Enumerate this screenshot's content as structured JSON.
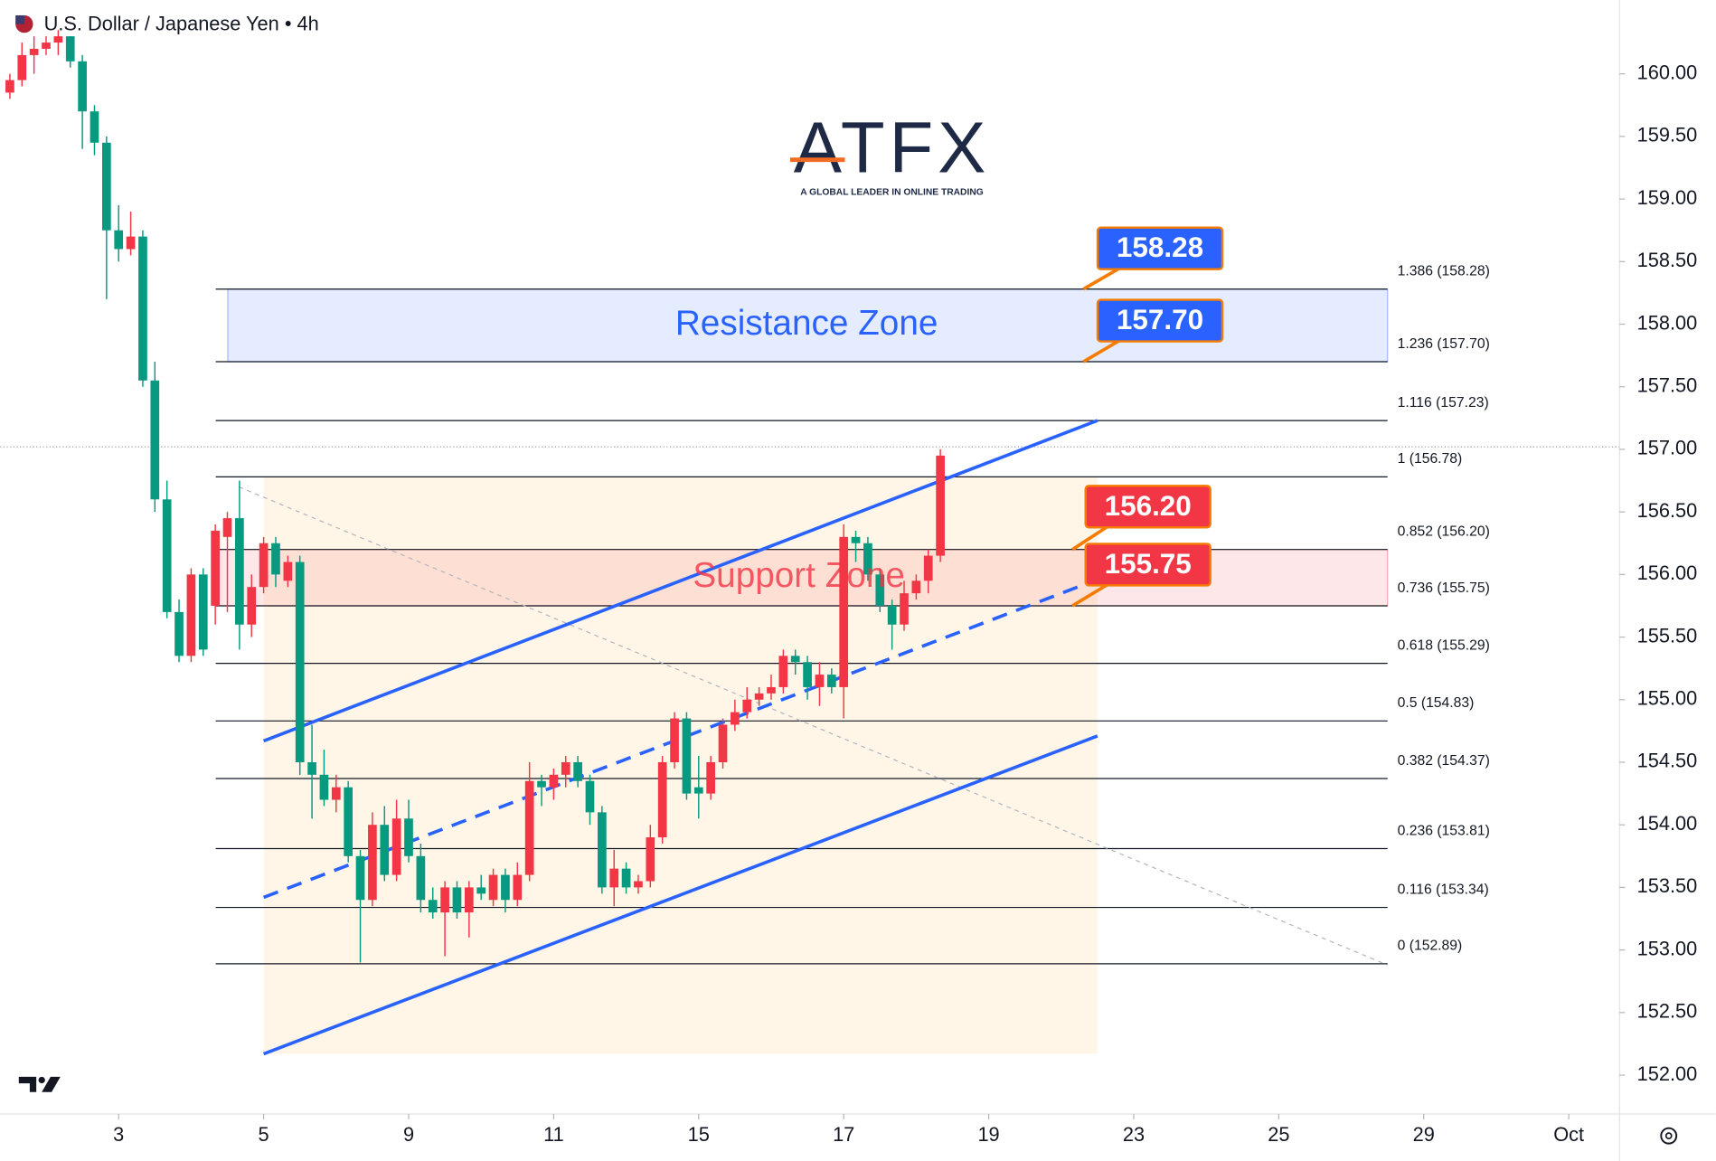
{
  "header": {
    "title": "U.S. Dollar / Japanese Yen • 4h"
  },
  "logo": {
    "name": "ATFX",
    "tagline": "A GLOBAL LEADER IN ONLINE TRADING"
  },
  "chart_data": {
    "type": "candlestick",
    "x": [
      -9,
      -8,
      -7,
      -6,
      -5,
      -4,
      -3,
      -2,
      -1,
      0,
      1,
      2,
      3,
      4,
      5,
      6,
      7,
      8,
      9,
      10,
      11,
      12,
      13,
      14,
      15,
      16,
      17,
      18,
      19,
      20,
      21,
      22,
      23,
      24,
      25,
      26,
      27,
      28,
      29,
      30,
      31,
      32,
      33,
      34,
      35,
      36,
      37,
      38,
      39,
      40,
      41,
      42,
      43,
      44,
      45,
      46,
      47,
      48,
      49,
      50,
      51,
      52,
      53,
      54,
      55,
      56,
      57,
      58,
      59,
      60,
      61,
      62,
      63,
      64,
      65,
      66,
      67,
      68
    ],
    "open": [
      159.85,
      159.95,
      160.15,
      160.2,
      160.25,
      160.3,
      160.1,
      159.7,
      159.45,
      158.75,
      158.6,
      158.7,
      157.55,
      156.6,
      155.7,
      155.35,
      156.0,
      155.75,
      156.3,
      156.45,
      155.6,
      155.9,
      156.25,
      155.95,
      156.1,
      154.5,
      154.4,
      154.2,
      154.3,
      153.75,
      153.4,
      154.0,
      153.6,
      154.05,
      153.75,
      153.4,
      153.3,
      153.5,
      153.3,
      153.5,
      153.4,
      153.6,
      153.4,
      153.6,
      154.35,
      154.3,
      154.4,
      154.5,
      154.35,
      154.1,
      153.5,
      153.65,
      153.5,
      153.55,
      153.9,
      154.5,
      154.85,
      154.3,
      154.25,
      154.5,
      154.8,
      154.9,
      155.0,
      155.05,
      155.1,
      155.35,
      155.3,
      155.1,
      155.2,
      155.1,
      156.3,
      156.25,
      156.0,
      155.75,
      155.6,
      155.85,
      155.95,
      156.15
    ],
    "high": [
      160.0,
      160.25,
      160.3,
      160.3,
      160.35,
      160.3,
      160.15,
      159.75,
      159.5,
      158.95,
      158.9,
      158.75,
      157.7,
      156.75,
      155.8,
      156.05,
      156.05,
      156.4,
      156.5,
      156.75,
      156.0,
      156.3,
      156.3,
      156.15,
      156.15,
      154.8,
      154.6,
      154.4,
      154.35,
      153.8,
      154.1,
      154.15,
      154.2,
      154.2,
      153.85,
      153.5,
      153.55,
      153.55,
      153.55,
      153.6,
      153.65,
      153.65,
      153.7,
      154.5,
      154.4,
      154.45,
      154.55,
      154.55,
      154.4,
      154.15,
      153.8,
      153.7,
      153.6,
      154.0,
      154.55,
      154.9,
      154.9,
      154.55,
      154.55,
      154.85,
      155.0,
      155.1,
      155.1,
      155.2,
      155.4,
      155.4,
      155.35,
      155.3,
      155.25,
      156.4,
      156.35,
      156.3,
      156.05,
      155.8,
      155.95,
      156.0,
      156.2,
      157.0
    ],
    "low": [
      159.8,
      159.9,
      160.0,
      160.15,
      160.15,
      160.05,
      159.4,
      159.35,
      158.2,
      158.5,
      158.55,
      157.5,
      156.5,
      155.65,
      155.3,
      155.3,
      155.35,
      155.6,
      155.7,
      155.4,
      155.5,
      155.85,
      155.9,
      155.9,
      154.4,
      154.05,
      154.15,
      154.1,
      153.7,
      152.9,
      153.35,
      153.55,
      153.55,
      153.7,
      153.3,
      153.25,
      152.95,
      153.25,
      153.1,
      153.4,
      153.35,
      153.3,
      153.35,
      153.55,
      154.15,
      154.2,
      154.3,
      154.3,
      154.0,
      153.45,
      153.35,
      153.45,
      153.45,
      153.5,
      153.85,
      154.45,
      154.2,
      154.05,
      154.2,
      154.45,
      154.75,
      154.85,
      154.95,
      155.0,
      155.05,
      155.2,
      155.0,
      154.95,
      155.05,
      154.85,
      156.1,
      155.95,
      155.7,
      155.4,
      155.55,
      155.8,
      155.85,
      156.1
    ],
    "close": [
      159.95,
      160.15,
      160.2,
      160.25,
      160.3,
      160.1,
      159.7,
      159.45,
      158.75,
      158.6,
      158.7,
      157.55,
      156.6,
      155.7,
      155.35,
      156.0,
      155.4,
      156.35,
      156.45,
      155.6,
      155.9,
      156.25,
      156.0,
      156.1,
      154.5,
      154.4,
      154.2,
      154.3,
      153.75,
      153.4,
      154.0,
      153.6,
      154.05,
      153.75,
      153.4,
      153.3,
      153.5,
      153.3,
      153.5,
      153.45,
      153.6,
      153.4,
      153.6,
      154.35,
      154.3,
      154.4,
      154.5,
      154.35,
      154.1,
      153.5,
      153.65,
      153.5,
      153.55,
      153.9,
      154.5,
      154.85,
      154.25,
      154.25,
      154.5,
      154.8,
      154.9,
      155.0,
      155.05,
      155.1,
      155.35,
      155.3,
      155.1,
      155.2,
      155.1,
      156.3,
      156.25,
      156.0,
      155.75,
      155.6,
      155.85,
      155.95,
      156.15,
      156.95
    ],
    "up_color": "#f23645",
    "down_color": "#089981",
    "xlim": [
      -9.8,
      124.2
    ],
    "xticks": [
      {
        "value": 0,
        "label": "3"
      },
      {
        "value": 12,
        "label": "5"
      },
      {
        "value": 24,
        "label": "9"
      },
      {
        "value": 36,
        "label": "11"
      },
      {
        "value": 48,
        "label": "15"
      },
      {
        "value": 60,
        "label": "17"
      },
      {
        "value": 72,
        "label": "19"
      },
      {
        "value": 84,
        "label": "23"
      },
      {
        "value": 96,
        "label": "25"
      },
      {
        "value": 108,
        "label": "29"
      },
      {
        "value": 120,
        "label": "Oct"
      }
    ],
    "ylim": [
      151.69,
      160.59
    ],
    "yticks": [
      {
        "value": 152,
        "label": "152.00"
      },
      {
        "value": 152.5,
        "label": "152.50"
      },
      {
        "value": 153,
        "label": "153.00"
      },
      {
        "value": 153.5,
        "label": "153.50"
      },
      {
        "value": 154,
        "label": "154.00"
      },
      {
        "value": 154.5,
        "label": "154.50"
      },
      {
        "value": 155,
        "label": "155.00"
      },
      {
        "value": 155.5,
        "label": "155.50"
      },
      {
        "value": 156,
        "label": "156.00"
      },
      {
        "value": 156.5,
        "label": "156.50"
      },
      {
        "value": 157,
        "label": "157.00"
      },
      {
        "value": 157.5,
        "label": "157.50"
      },
      {
        "value": 158,
        "label": "158.00"
      },
      {
        "value": 158.5,
        "label": "158.50"
      },
      {
        "value": 159,
        "label": "159.00"
      },
      {
        "value": 159.5,
        "label": "159.50"
      },
      {
        "value": 160,
        "label": "160.00"
      }
    ],
    "fib_levels": [
      {
        "value": 158.28,
        "label": "1.386 (158.28)"
      },
      {
        "value": 157.7,
        "label": "1.236 (157.70)"
      },
      {
        "value": 157.23,
        "label": "1.116 (157.23)"
      },
      {
        "value": 156.78,
        "label": "1 (156.78)"
      },
      {
        "value": 156.2,
        "label": "0.852 (156.20)"
      },
      {
        "value": 155.75,
        "label": "0.736 (155.75)"
      },
      {
        "value": 155.29,
        "label": "0.618 (155.29)"
      },
      {
        "value": 154.83,
        "label": "0.5 (154.83)"
      },
      {
        "value": 154.37,
        "label": "0.382 (154.37)"
      },
      {
        "value": 153.81,
        "label": "0.236 (153.81)"
      },
      {
        "value": 153.34,
        "label": "0.116 (153.34)"
      },
      {
        "value": 152.89,
        "label": "0 (152.89)"
      }
    ],
    "zones": [
      {
        "label": "Resistance Zone",
        "from": 157.7,
        "to": 158.28,
        "color": "#2962ff"
      },
      {
        "label": "Support Zone",
        "from": 155.75,
        "to": 156.2,
        "color": "#f23645"
      }
    ],
    "callouts": [
      {
        "value": 158.28,
        "label": "158.28",
        "color": "#2962ff"
      },
      {
        "value": 157.7,
        "label": "157.70",
        "color": "#2962ff"
      },
      {
        "value": 156.2,
        "label": "156.20",
        "color": "#f23645"
      },
      {
        "value": 155.75,
        "label": "155.75",
        "color": "#f23645"
      }
    ],
    "channel": {
      "color": "#2962ff",
      "upper": {
        "x": [
          12,
          81
        ],
        "y": [
          154.67,
          157.23
        ]
      },
      "middle": {
        "x": [
          12,
          81
        ],
        "y": [
          153.42,
          155.96
        ]
      },
      "lower": {
        "x": [
          12,
          81
        ],
        "y": [
          152.17,
          154.71
        ]
      }
    },
    "shade": {
      "x": [
        12,
        81
      ],
      "y": [
        152.17,
        156.78
      ]
    },
    "trendline": {
      "x": [
        9.95,
        105
      ],
      "y": [
        156.7,
        152.88
      ]
    },
    "last_price": 157.02
  }
}
